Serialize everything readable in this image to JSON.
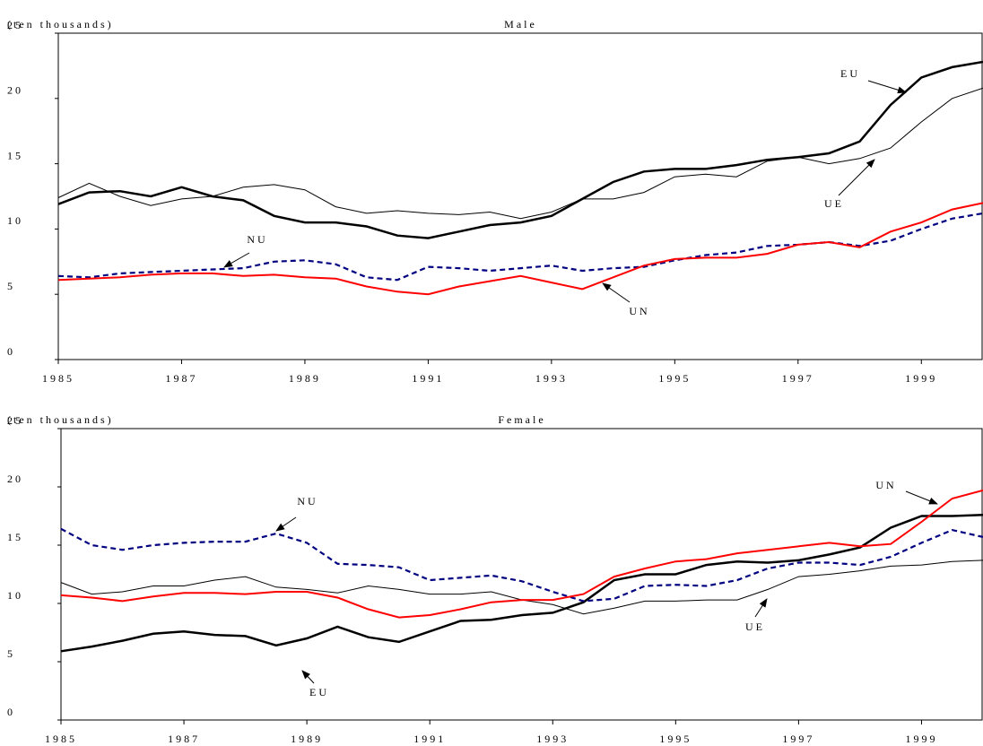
{
  "chart_data": [
    {
      "type": "line",
      "title": "Male",
      "ylabel": "(ten thousands)",
      "x": [
        1985,
        1985.5,
        1986,
        1986.5,
        1987,
        1987.5,
        1988,
        1988.5,
        1989,
        1989.5,
        1990,
        1990.5,
        1991,
        1991.5,
        1992,
        1992.5,
        1993,
        1993.5,
        1994,
        1994.5,
        1995,
        1995.5,
        1996,
        1996.5,
        1997,
        1997.5,
        1998,
        1998.5,
        1999,
        1999.5,
        2000
      ],
      "xlim": [
        1985,
        2000
      ],
      "xticks": [
        1985,
        1987,
        1989,
        1991,
        1993,
        1995,
        1997,
        1999
      ],
      "ylim": [
        0,
        25
      ],
      "yticks": [
        0,
        5,
        10,
        15,
        20,
        25
      ],
      "series": [
        {
          "name": "EU",
          "color": "#000000",
          "values": [
            11.9,
            12.8,
            12.9,
            12.5,
            13.2,
            12.5,
            12.2,
            11.0,
            10.5,
            10.5,
            10.2,
            9.5,
            9.3,
            9.8,
            10.3,
            10.5,
            11.0,
            12.3,
            13.6,
            14.4,
            14.6,
            14.6,
            14.9,
            15.3,
            15.5,
            15.8,
            16.7,
            19.5,
            21.6,
            22.4,
            22.8
          ]
        },
        {
          "name": "UE",
          "color": "#000000",
          "values": [
            12.4,
            13.5,
            12.5,
            11.8,
            12.3,
            12.5,
            13.2,
            13.4,
            13.0,
            11.7,
            11.2,
            11.4,
            11.2,
            11.1,
            11.3,
            10.8,
            11.3,
            12.3,
            12.3,
            12.8,
            14.0,
            14.2,
            14.0,
            15.2,
            15.5,
            15.0,
            15.4,
            16.2,
            18.2,
            20.0,
            20.8
          ]
        },
        {
          "name": "NU",
          "color": "#000080",
          "values": [
            6.4,
            6.3,
            6.6,
            6.7,
            6.8,
            6.9,
            7.0,
            7.5,
            7.6,
            7.3,
            6.3,
            6.1,
            7.1,
            7.0,
            6.8,
            7.0,
            7.2,
            6.8,
            7.0,
            7.1,
            7.6,
            8.0,
            8.2,
            8.7,
            8.8,
            9.0,
            8.7,
            9.1,
            10.0,
            10.8,
            11.2
          ]
        },
        {
          "name": "UN",
          "color": "#ff0000",
          "values": [
            6.1,
            6.2,
            6.3,
            6.5,
            6.6,
            6.6,
            6.4,
            6.5,
            6.3,
            6.2,
            5.6,
            5.2,
            5.0,
            5.6,
            6.0,
            6.4,
            5.9,
            5.4,
            6.3,
            7.2,
            7.7,
            7.8,
            7.8,
            8.1,
            8.8,
            9.0,
            8.6,
            9.8,
            10.5,
            11.5,
            12.0
          ]
        }
      ]
    },
    {
      "type": "line",
      "title": "Female",
      "ylabel": "(ten thousands)",
      "x": [
        1985,
        1985.5,
        1986,
        1986.5,
        1987,
        1987.5,
        1988,
        1988.5,
        1989,
        1989.5,
        1990,
        1990.5,
        1991,
        1991.5,
        1992,
        1992.5,
        1993,
        1993.5,
        1994,
        1994.5,
        1995,
        1995.5,
        1996,
        1996.5,
        1997,
        1997.5,
        1998,
        1998.5,
        1999,
        1999.5,
        2000
      ],
      "xlim": [
        1985,
        2000
      ],
      "xticks": [
        1985,
        1987,
        1989,
        1991,
        1993,
        1995,
        1997,
        1999
      ],
      "ylim": [
        0,
        25
      ],
      "yticks": [
        0,
        5,
        10,
        15,
        20,
        25
      ],
      "series": [
        {
          "name": "EU",
          "color": "#000000",
          "values": [
            5.9,
            6.3,
            6.8,
            7.4,
            7.6,
            7.3,
            7.2,
            6.4,
            7.0,
            8.0,
            7.1,
            6.7,
            7.6,
            8.5,
            8.6,
            9.0,
            9.2,
            10.1,
            12.0,
            12.5,
            12.5,
            13.3,
            13.6,
            13.5,
            13.7,
            14.2,
            14.8,
            16.5,
            17.5,
            17.5,
            17.6
          ]
        },
        {
          "name": "UE",
          "color": "#000000",
          "values": [
            11.8,
            10.8,
            11.0,
            11.5,
            11.5,
            12.0,
            12.3,
            11.4,
            11.2,
            10.9,
            11.5,
            11.2,
            10.8,
            10.8,
            11.0,
            10.3,
            9.9,
            9.1,
            9.6,
            10.2,
            10.2,
            10.3,
            10.3,
            11.2,
            12.3,
            12.5,
            12.8,
            13.2,
            13.3,
            13.6,
            13.7
          ]
        },
        {
          "name": "NU",
          "color": "#000080",
          "values": [
            16.4,
            15.0,
            14.6,
            15.0,
            15.2,
            15.3,
            15.3,
            16.0,
            15.2,
            13.4,
            13.3,
            13.1,
            12.0,
            12.2,
            12.4,
            11.9,
            11.0,
            10.2,
            10.4,
            11.5,
            11.6,
            11.5,
            12.0,
            13.0,
            13.5,
            13.5,
            13.3,
            14.0,
            15.2,
            16.3,
            15.7
          ]
        },
        {
          "name": "UN",
          "color": "#ff0000",
          "values": [
            10.7,
            10.5,
            10.2,
            10.6,
            10.9,
            10.9,
            10.8,
            11.0,
            11.0,
            10.5,
            9.5,
            8.8,
            9.0,
            9.5,
            10.1,
            10.3,
            10.3,
            10.8,
            12.3,
            13.0,
            13.6,
            13.8,
            14.3,
            14.6,
            14.9,
            15.2,
            14.9,
            15.1,
            17.0,
            19.0,
            19.7
          ]
        }
      ]
    }
  ]
}
